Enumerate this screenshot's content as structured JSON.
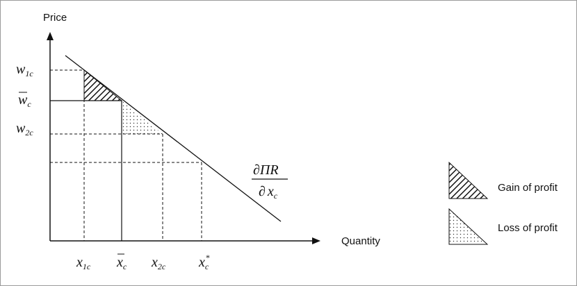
{
  "axes": {
    "y_label": "Price",
    "x_label": "Quantity"
  },
  "price_labels": {
    "w1c_base": "w",
    "w1c_sub": "1c",
    "wbar_base": "w",
    "wbar_sub": "c",
    "w2c_base": "w",
    "w2c_sub": "2c"
  },
  "quantity_labels": {
    "x1c_base": "x",
    "x1c_sub": "1c",
    "xbar_base": "x",
    "xbar_sub": "c",
    "x2c_base": "x",
    "x2c_sub": "2c",
    "xstar_base": "x",
    "xstar_sub": "c",
    "xstar_sup": "*"
  },
  "curve_label": {
    "numerator": "∂ΠR",
    "denominator_partial": "∂",
    "denominator_base": "x",
    "denominator_sub": "c"
  },
  "legend": {
    "gain_label": "Gain of profit",
    "loss_label": "Loss of profit"
  }
}
